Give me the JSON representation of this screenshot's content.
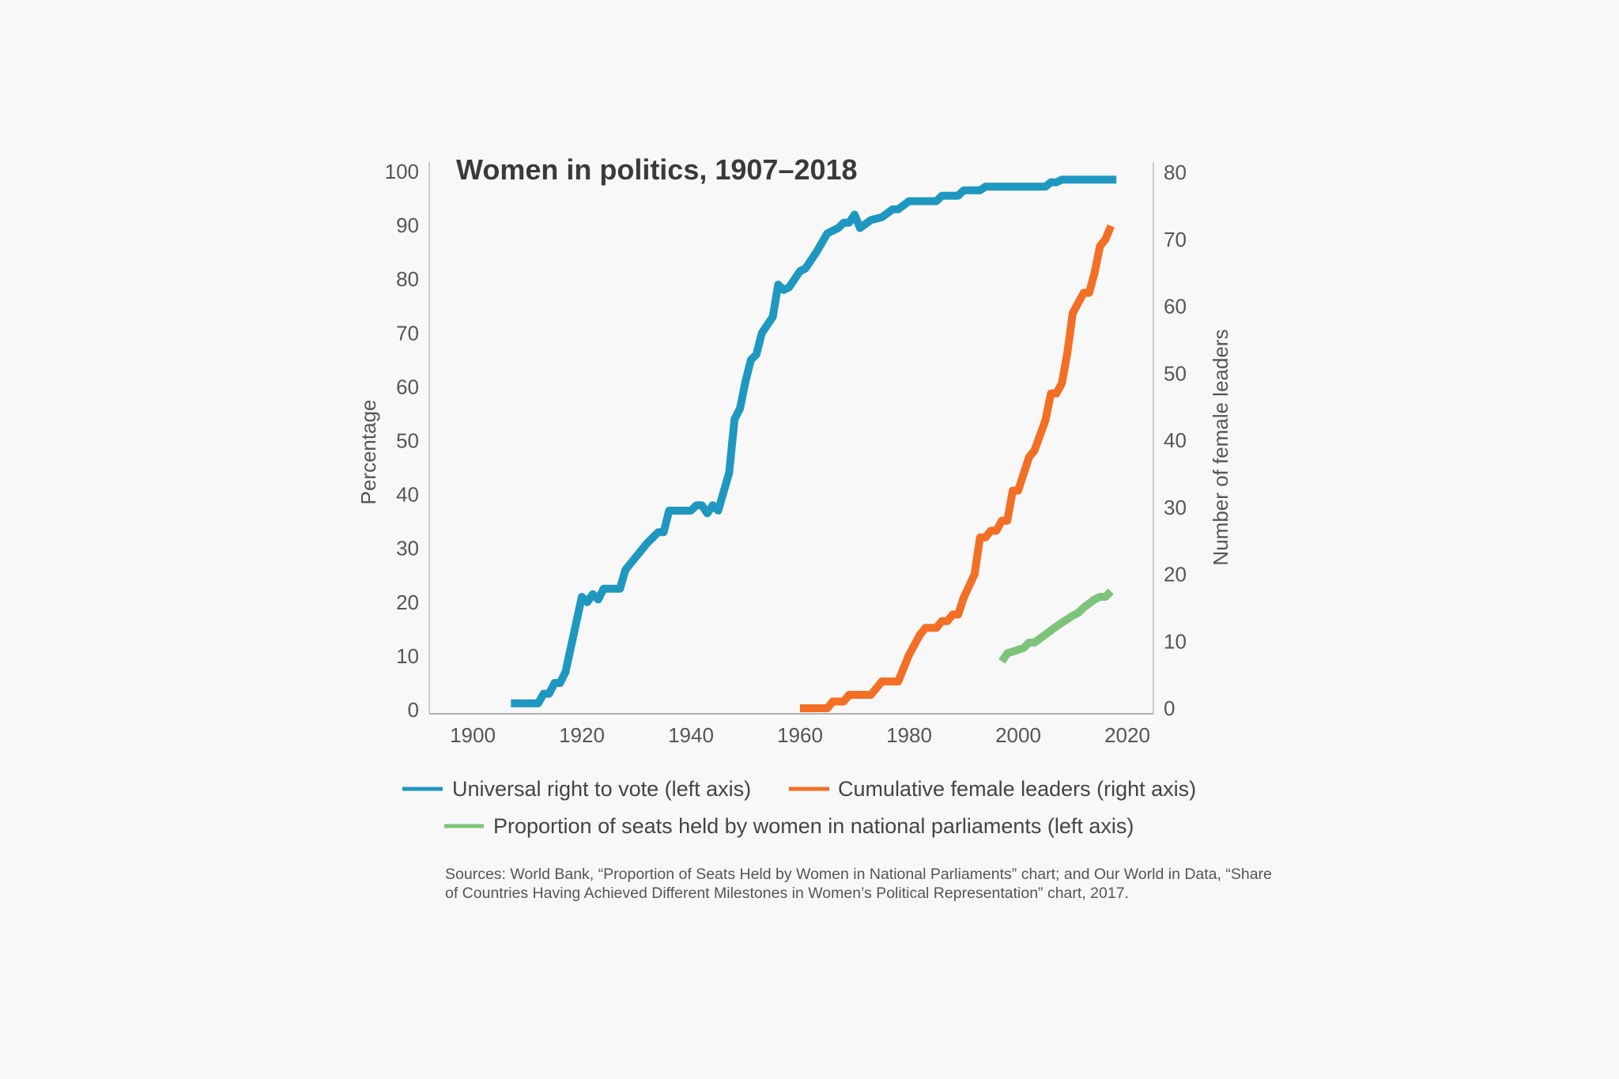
{
  "chart_data": {
    "type": "line",
    "title": "Women in politics, 1907–2018",
    "xlabel": "",
    "ylabel": "Percentage",
    "y2label": "Number of female leaders",
    "xlim": [
      1900,
      2020
    ],
    "ylim": [
      0,
      100
    ],
    "y2lim": [
      0,
      80
    ],
    "xticks": [
      "1900",
      "1920",
      "1940",
      "1960",
      "1980",
      "2000",
      "2020"
    ],
    "yticks": [
      "0",
      "10",
      "20",
      "30",
      "40",
      "50",
      "60",
      "70",
      "80",
      "90",
      "100"
    ],
    "y2ticks": [
      "0",
      "10",
      "20",
      "30",
      "40",
      "50",
      "60",
      "70",
      "80"
    ],
    "grid": false,
    "legend_position": "bottom",
    "series": [
      {
        "name": "Universal right to vote (left axis)",
        "axis": "left",
        "color": "#1e98c0",
        "x": [
          1907,
          1912,
          1913,
          1914,
          1915,
          1916,
          1917,
          1920,
          1921,
          1922,
          1923,
          1924,
          1927,
          1928,
          1932,
          1934,
          1935,
          1936,
          1940,
          1941,
          1942,
          1943,
          1944,
          1945,
          1947,
          1948,
          1949,
          1950,
          1951,
          1952,
          1953,
          1955,
          1956,
          1957,
          1958,
          1960,
          1961,
          1963,
          1965,
          1967,
          1968,
          1969,
          1970,
          1971,
          1973,
          1975,
          1977,
          1978,
          1980,
          1985,
          1986,
          1989,
          1990,
          1993,
          1994,
          2005,
          2006,
          2007,
          2008,
          2018
        ],
        "y": [
          1.2,
          1.2,
          3,
          3,
          5,
          5,
          7,
          21,
          20,
          21.5,
          20.5,
          22.5,
          22.5,
          26,
          31,
          33,
          33,
          37,
          37,
          38,
          38,
          36.5,
          38,
          37,
          44,
          54,
          56,
          61,
          65,
          66,
          70,
          73,
          79,
          78,
          78.5,
          81.5,
          82,
          85,
          88.5,
          89.5,
          90.5,
          90.5,
          92,
          89.5,
          91,
          91.5,
          93,
          93,
          94.5,
          94.5,
          95.5,
          95.5,
          96.5,
          96.5,
          97.2,
          97.2,
          98,
          98,
          98.5,
          98.5
        ]
      },
      {
        "name": "Cumulative female leaders (right axis)",
        "axis": "right",
        "color": "#f26f25",
        "x": [
          1960,
          1965,
          1966,
          1968,
          1969,
          1973,
          1975,
          1978,
          1980,
          1982,
          1983,
          1985,
          1986,
          1987,
          1988,
          1989,
          1990,
          1992,
          1993,
          1994,
          1995,
          1996,
          1997,
          1998,
          1999,
          2000,
          2002,
          2003,
          2005,
          2006,
          2007,
          2008,
          2009,
          2010,
          2011,
          2012,
          2013,
          2014,
          2015,
          2016,
          2017
        ],
        "y": [
          0,
          0,
          1,
          1,
          2,
          2,
          4,
          4,
          8,
          11,
          12,
          12,
          13,
          13,
          14,
          14,
          16.5,
          20,
          25.5,
          25.5,
          26.5,
          26.5,
          28,
          28,
          32.5,
          32.5,
          37.5,
          38.5,
          43,
          47,
          47,
          48.5,
          53,
          59,
          60.5,
          62,
          62,
          65,
          69,
          70,
          72
        ]
      },
      {
        "name": "Proportion of seats held by women in national parliaments (left axis)",
        "axis": "left",
        "color": "#7dc47a",
        "x": [
          1997,
          1998,
          2001,
          2002,
          2003,
          2005,
          2007,
          2010,
          2011,
          2012,
          2014,
          2015,
          2016,
          2017
        ],
        "y": [
          9,
          10.5,
          11.5,
          12.5,
          12.5,
          14,
          15.5,
          17.5,
          18,
          19,
          20.5,
          21,
          21,
          22
        ]
      }
    ]
  },
  "sources": "Sources: World Bank, “Proportion of Seats Held by Women in National Parliaments” chart; and Our World in Data, “Share of Countries Having Achieved Different Milestones in Women’s Political Representation” chart, 2017."
}
